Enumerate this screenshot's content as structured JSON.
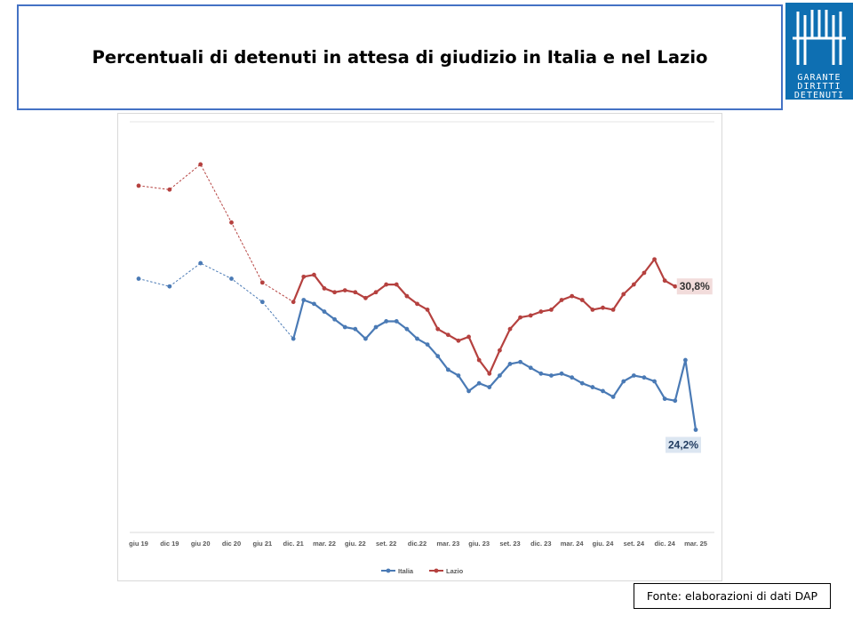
{
  "header": {
    "title": "Percentuali di detenuti in attesa di giudizio in Italia e nel Lazio"
  },
  "logo": {
    "lines": [
      "GARANTE",
      "DIRITTI",
      "DETENUTI"
    ],
    "color": "#0e6fb2"
  },
  "source": {
    "text": "Fonte: elaborazioni di dati DAP"
  },
  "chart_data": {
    "type": "line",
    "title": "",
    "xlabel": "",
    "ylabel": "",
    "grid": false,
    "legend_position": "bottom",
    "categories": [
      "giu 19",
      "dic 19",
      "giu 20",
      "dic 20",
      "giu 21",
      "dic. 21",
      "mar. 22",
      "giu. 22",
      "set. 22",
      "dic.22",
      "mar. 23",
      "giu. 23",
      "set. 23",
      "dic. 23",
      "mar. 24",
      "giu. 24",
      "set. 24",
      "dic. 24",
      "mar. 25"
    ],
    "series": [
      {
        "name": "Italia",
        "color": "#4a7ab5",
        "points": [
          {
            "x": 0,
            "y": 32.0
          },
          {
            "x": 1,
            "y": 31.6
          },
          {
            "x": 2,
            "y": 32.8
          },
          {
            "x": 3,
            "y": 32.0
          },
          {
            "x": 4,
            "y": 30.8
          },
          {
            "x": 5,
            "y": 28.9
          },
          {
            "x": 5.333,
            "y": 30.9
          },
          {
            "x": 5.667,
            "y": 30.7
          },
          {
            "x": 6,
            "y": 30.3
          },
          {
            "x": 6.333,
            "y": 29.9
          },
          {
            "x": 6.667,
            "y": 29.5
          },
          {
            "x": 7,
            "y": 29.4
          },
          {
            "x": 7.333,
            "y": 28.9
          },
          {
            "x": 7.667,
            "y": 29.5
          },
          {
            "x": 8,
            "y": 29.8
          },
          {
            "x": 8.333,
            "y": 29.8
          },
          {
            "x": 8.667,
            "y": 29.4
          },
          {
            "x": 9,
            "y": 28.9
          },
          {
            "x": 9.333,
            "y": 28.6
          },
          {
            "x": 9.667,
            "y": 28.0
          },
          {
            "x": 10,
            "y": 27.3
          },
          {
            "x": 10.333,
            "y": 27.0
          },
          {
            "x": 10.667,
            "y": 26.2
          },
          {
            "x": 11,
            "y": 26.6
          },
          {
            "x": 11.333,
            "y": 26.4
          },
          {
            "x": 11.667,
            "y": 27.0
          },
          {
            "x": 12,
            "y": 27.6
          },
          {
            "x": 12.333,
            "y": 27.7
          },
          {
            "x": 12.667,
            "y": 27.4
          },
          {
            "x": 13,
            "y": 27.1
          },
          {
            "x": 13.333,
            "y": 27.0
          },
          {
            "x": 13.667,
            "y": 27.1
          },
          {
            "x": 14,
            "y": 26.9
          },
          {
            "x": 14.333,
            "y": 26.6
          },
          {
            "x": 14.667,
            "y": 26.4
          },
          {
            "x": 15,
            "y": 26.2
          },
          {
            "x": 15.333,
            "y": 25.9
          },
          {
            "x": 15.667,
            "y": 26.7
          },
          {
            "x": 16,
            "y": 27.0
          },
          {
            "x": 16.333,
            "y": 26.9
          },
          {
            "x": 16.667,
            "y": 26.7
          },
          {
            "x": 17,
            "y": 25.8
          },
          {
            "x": 17.333,
            "y": 25.7
          },
          {
            "x": 17.667,
            "y": 27.8
          },
          {
            "x": 18,
            "y": 24.2
          }
        ]
      },
      {
        "name": "Lazio",
        "color": "#b5413f",
        "points": [
          {
            "x": 0,
            "y": 36.8
          },
          {
            "x": 1,
            "y": 36.6
          },
          {
            "x": 2,
            "y": 37.9
          },
          {
            "x": 3,
            "y": 34.9
          },
          {
            "x": 4,
            "y": 31.8
          },
          {
            "x": 5,
            "y": 30.8
          },
          {
            "x": 5.333,
            "y": 32.1
          },
          {
            "x": 5.667,
            "y": 32.2
          },
          {
            "x": 6,
            "y": 31.5
          },
          {
            "x": 6.333,
            "y": 31.3
          },
          {
            "x": 6.667,
            "y": 31.4
          },
          {
            "x": 7,
            "y": 31.3
          },
          {
            "x": 7.333,
            "y": 31.0
          },
          {
            "x": 7.667,
            "y": 31.3
          },
          {
            "x": 8,
            "y": 31.7
          },
          {
            "x": 8.333,
            "y": 31.7
          },
          {
            "x": 8.667,
            "y": 31.1
          },
          {
            "x": 9,
            "y": 30.7
          },
          {
            "x": 9.333,
            "y": 30.4
          },
          {
            "x": 9.667,
            "y": 29.4
          },
          {
            "x": 10,
            "y": 29.1
          },
          {
            "x": 10.333,
            "y": 28.8
          },
          {
            "x": 10.667,
            "y": 29.0
          },
          {
            "x": 11,
            "y": 27.8
          },
          {
            "x": 11.333,
            "y": 27.1
          },
          {
            "x": 11.667,
            "y": 28.3
          },
          {
            "x": 12,
            "y": 29.4
          },
          {
            "x": 12.333,
            "y": 30.0
          },
          {
            "x": 12.667,
            "y": 30.1
          },
          {
            "x": 13,
            "y": 30.3
          },
          {
            "x": 13.333,
            "y": 30.4
          },
          {
            "x": 13.667,
            "y": 30.9
          },
          {
            "x": 14,
            "y": 31.1
          },
          {
            "x": 14.333,
            "y": 30.9
          },
          {
            "x": 14.667,
            "y": 30.4
          },
          {
            "x": 15,
            "y": 30.5
          },
          {
            "x": 15.333,
            "y": 30.4
          },
          {
            "x": 15.667,
            "y": 31.2
          },
          {
            "x": 16,
            "y": 31.7
          },
          {
            "x": 16.333,
            "y": 32.3
          },
          {
            "x": 16.667,
            "y": 33.0
          },
          {
            "x": 17,
            "y": 31.9
          },
          {
            "x": 17.333,
            "y": 31.6
          }
        ]
      }
    ],
    "dashed_until_x": 5,
    "annotations": [
      {
        "series": "Lazio",
        "text": "30,8%",
        "bg": "#f2dcdb",
        "color": "#333333"
      },
      {
        "series": "Italia",
        "text": "24,2%",
        "bg": "#dce6f1",
        "color": "#1f3a5f"
      }
    ],
    "ylim": [
      18.9,
      40.1
    ]
  }
}
